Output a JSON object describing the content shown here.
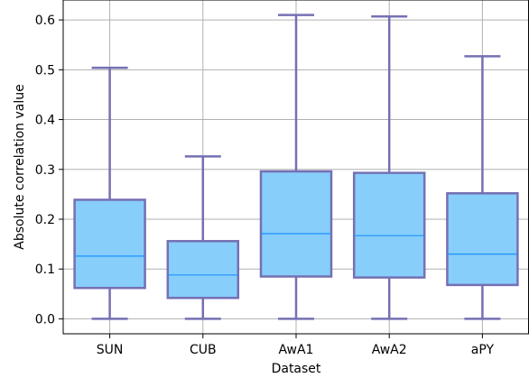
{
  "chart_data": {
    "type": "box",
    "title": "",
    "xlabel": "Dataset",
    "ylabel": "Absolute correlation value",
    "ylim": [
      -0.03,
      0.64
    ],
    "yticks": [
      0.0,
      0.1,
      0.2,
      0.3,
      0.4,
      0.5,
      0.6
    ],
    "ytick_labels": [
      "0.0",
      "0.1",
      "0.2",
      "0.3",
      "0.4",
      "0.5",
      "0.6"
    ],
    "grid": true,
    "colors": {
      "box_fill": "#87cefa",
      "box_edge": "#7570b3",
      "median": "#1e90ff",
      "grid": "#b0b0b0"
    },
    "categories": [
      "SUN",
      "CUB",
      "AwA1",
      "AwA2",
      "aPY"
    ],
    "boxes": [
      {
        "category": "SUN",
        "whislo": 0.0,
        "q1": 0.062,
        "med": 0.126,
        "q3": 0.239,
        "whishi": 0.504
      },
      {
        "category": "CUB",
        "whislo": 0.0,
        "q1": 0.042,
        "med": 0.088,
        "q3": 0.156,
        "whishi": 0.326
      },
      {
        "category": "AwA1",
        "whislo": 0.0,
        "q1": 0.085,
        "med": 0.171,
        "q3": 0.296,
        "whishi": 0.61
      },
      {
        "category": "AwA2",
        "whislo": 0.0,
        "q1": 0.083,
        "med": 0.167,
        "q3": 0.293,
        "whishi": 0.607
      },
      {
        "category": "aPY",
        "whislo": 0.0,
        "q1": 0.068,
        "med": 0.13,
        "q3": 0.252,
        "whishi": 0.527
      }
    ]
  }
}
